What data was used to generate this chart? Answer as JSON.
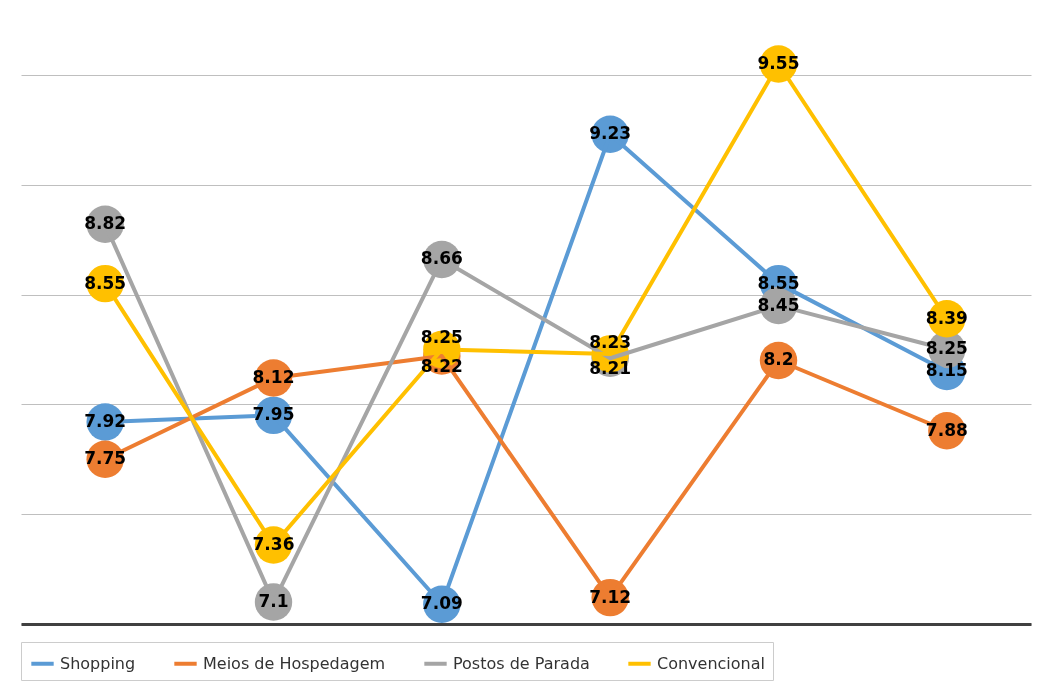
{
  "chart_data": {
    "type": "line",
    "categories": [
      null,
      null,
      null,
      null,
      null,
      null
    ],
    "series": [
      {
        "name": "Shopping",
        "color": "#5b9bd5",
        "values": [
          7.92,
          7.95,
          7.09,
          9.23,
          8.55,
          8.15
        ]
      },
      {
        "name": "Meios de Hospedagem",
        "color": "#ed7d31",
        "values": [
          7.75,
          8.12,
          8.22,
          7.12,
          8.2,
          7.88
        ]
      },
      {
        "name": "Postos de Parada",
        "color": "#a5a5a5",
        "values": [
          8.82,
          7.1,
          8.66,
          8.21,
          8.45,
          8.25
        ]
      },
      {
        "name": "Convencional",
        "color": "#ffc000",
        "values": [
          8.55,
          7.36,
          8.25,
          8.23,
          9.55,
          8.39
        ]
      }
    ],
    "yticks": [
      {
        "value": 7,
        "label": null
      },
      {
        "value": 7.5,
        "label": null
      },
      {
        "value": 8,
        "label": null
      },
      {
        "value": 8.5,
        "label": null
      },
      {
        "value": 9,
        "label": null
      },
      {
        "value": 9.5,
        "label": null
      }
    ],
    "tick_labels": false,
    "grid": "y",
    "legend": "bottom",
    "marker": "circle",
    "line_style": "solid",
    "data_labels": true
  }
}
